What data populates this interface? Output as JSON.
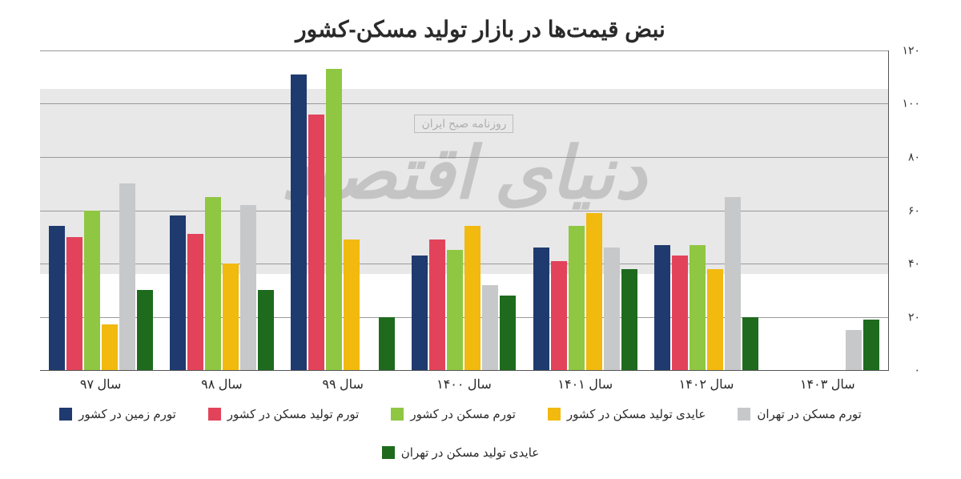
{
  "chart": {
    "type": "bar",
    "title": "نبض قیمت‌ها در بازار تولید مسکن-کشور",
    "title_fontsize": 28,
    "background_color": "#ffffff",
    "grid_color": "#999999",
    "axis_color": "#555555",
    "label_fontsize": 14,
    "ylim": [
      0,
      120
    ],
    "ytick_step": 20,
    "yticks": [
      {
        "v": 0,
        "label": "۰"
      },
      {
        "v": 20,
        "label": "۲۰"
      },
      {
        "v": 40,
        "label": "۴۰"
      },
      {
        "v": 60,
        "label": "۶۰"
      },
      {
        "v": 80,
        "label": "۸۰"
      },
      {
        "v": 100,
        "label": "۱۰۰"
      },
      {
        "v": 120,
        "label": "۱۲۰"
      }
    ],
    "categories": [
      "سال ۹۷",
      "سال ۹۸",
      "سال ۹۹",
      "سال ۱۴۰۰",
      "سال ۱۴۰۱",
      "سال ۱۴۰۲",
      "سال ۱۴۰۳"
    ],
    "series": [
      {
        "key": "s0",
        "label": "تورم زمین در کشور",
        "color": "#1f3a6e"
      },
      {
        "key": "s1",
        "label": "تورم تولید مسکن در کشور",
        "color": "#e2435b"
      },
      {
        "key": "s2",
        "label": "تورم مسکن در کشور",
        "color": "#8fc742"
      },
      {
        "key": "s3",
        "label": "عایدی تولید مسکن در کشور",
        "color": "#f2b90f"
      },
      {
        "key": "s4",
        "label": "تورم مسکن در تهران",
        "color": "#c7c8c9"
      },
      {
        "key": "s5",
        "label": "عایدی تولید مسکن در تهران",
        "color": "#1e6b1e"
      }
    ],
    "data": [
      {
        "s0": 54,
        "s1": 50,
        "s2": 60,
        "s3": 17,
        "s4": 70,
        "s5": 30
      },
      {
        "s0": 58,
        "s1": 51,
        "s2": 65,
        "s3": 40,
        "s4": 62,
        "s5": 30
      },
      {
        "s0": 111,
        "s1": 96,
        "s2": 113,
        "s3": 49,
        "s4": 0,
        "s5": 20
      },
      {
        "s0": 43,
        "s1": 49,
        "s2": 45,
        "s3": 54,
        "s4": 32,
        "s5": 28
      },
      {
        "s0": 46,
        "s1": 41,
        "s2": 54,
        "s3": 59,
        "s4": 46,
        "s5": 38
      },
      {
        "s0": 47,
        "s1": 43,
        "s2": 47,
        "s3": 38,
        "s4": 65,
        "s5": 20
      },
      {
        "s0": 0,
        "s1": 0,
        "s2": 0,
        "s3": 0,
        "s4": 15,
        "s5": 19
      }
    ],
    "watermark": {
      "sub": "روزنامه صبح ایران",
      "main": "دنیای اقتصاد",
      "band_color": "#bcbcbd",
      "band_opacity": 0.35,
      "text_opacity": 0.45
    }
  }
}
